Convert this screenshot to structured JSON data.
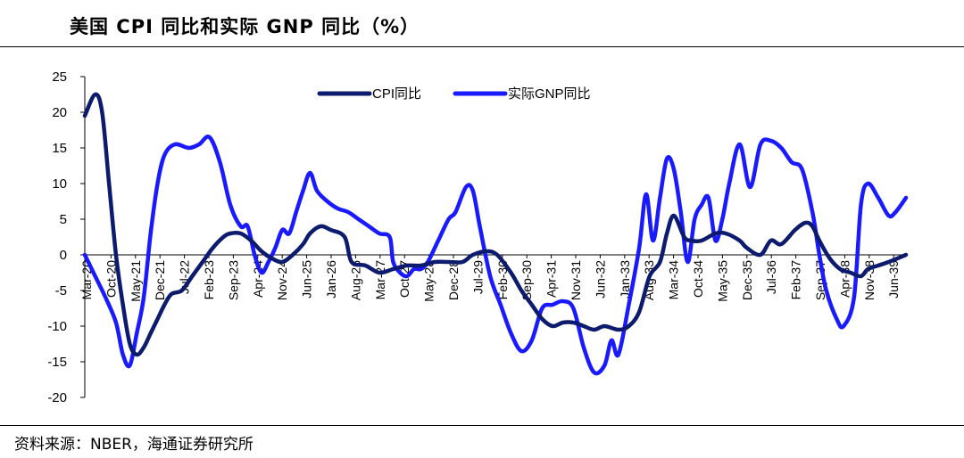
{
  "header": {
    "title": "美国 CPI 同比和实际 GNP 同比（%）"
  },
  "footer": {
    "source": "资料来源：NBER，海通证券研究所"
  },
  "chart_data": {
    "type": "line",
    "title": "美国 CPI 同比和实际 GNP 同比（%）",
    "xlabel": "",
    "ylabel": "",
    "ylim": [
      -20,
      25
    ],
    "yticks": [
      25,
      20,
      15,
      10,
      5,
      0,
      -5,
      -10,
      -15,
      -20
    ],
    "grid": false,
    "legend_position": "top-center",
    "x_tick_labels": [
      "Mar-20",
      "Oct-20",
      "May-21",
      "Dec-21",
      "Jul-22",
      "Feb-23",
      "Sep-23",
      "Apr-24",
      "Nov-24",
      "Jun-25",
      "Jan-26",
      "Aug-26",
      "Mar-27",
      "Oct-27",
      "May-28",
      "Dec-28",
      "Jul-29",
      "Feb-30",
      "Sep-30",
      "Apr-31",
      "Nov-31",
      "Jun-32",
      "Jan-33",
      "Aug-33",
      "Mar-34",
      "Oct-34",
      "May-35",
      "Dec-35",
      "Jul-36",
      "Feb-37",
      "Sep-37",
      "Apr-38",
      "Nov-38",
      "Jun-39"
    ],
    "series": [
      {
        "name": "CPI同比",
        "color": "#0d1b6e",
        "points": [
          [
            "Mar-20",
            19.5
          ],
          [
            "Jun-20",
            22.5
          ],
          [
            "Aug-20",
            20
          ],
          [
            "Oct-20",
            10
          ],
          [
            "Dec-20",
            0
          ],
          [
            "Feb-21",
            -7
          ],
          [
            "Apr-21",
            -12.5
          ],
          [
            "Jun-21",
            -14
          ],
          [
            "Aug-21",
            -13
          ],
          [
            "Oct-21",
            -11
          ],
          [
            "Dec-21",
            -9
          ],
          [
            "Feb-22",
            -7
          ],
          [
            "Apr-22",
            -5.5
          ],
          [
            "Jul-22",
            -5
          ],
          [
            "Oct-22",
            -3
          ],
          [
            "Jan-23",
            -1
          ],
          [
            "Apr-23",
            1
          ],
          [
            "Jul-23",
            2.5
          ],
          [
            "Sep-23",
            3
          ],
          [
            "Dec-23",
            3
          ],
          [
            "Mar-24",
            2
          ],
          [
            "Jun-24",
            0.5
          ],
          [
            "Sep-24",
            -0.5
          ],
          [
            "Dec-24",
            -1
          ],
          [
            "Mar-25",
            0
          ],
          [
            "Jun-25",
            1.5
          ],
          [
            "Aug-25",
            3
          ],
          [
            "Nov-25",
            4
          ],
          [
            "Feb-26",
            3.5
          ],
          [
            "Jun-26",
            2.5
          ],
          [
            "Aug-26",
            -1
          ],
          [
            "Dec-26",
            -1.5
          ],
          [
            "Apr-27",
            -2.5
          ],
          [
            "Aug-27",
            -2
          ],
          [
            "Dec-27",
            -1.5
          ],
          [
            "Apr-28",
            -1.5
          ],
          [
            "Aug-28",
            -1
          ],
          [
            "Dec-28",
            -1
          ],
          [
            "Apr-29",
            -1
          ],
          [
            "Jul-29",
            0
          ],
          [
            "Nov-29",
            0.5
          ],
          [
            "Feb-30",
            0
          ],
          [
            "Jun-30",
            -2.5
          ],
          [
            "Sep-30",
            -5
          ],
          [
            "Dec-30",
            -7
          ],
          [
            "Mar-31",
            -9
          ],
          [
            "Jun-31",
            -10
          ],
          [
            "Sep-31",
            -9.5
          ],
          [
            "Dec-31",
            -9.5
          ],
          [
            "Mar-32",
            -10
          ],
          [
            "Jun-32",
            -10.5
          ],
          [
            "Sep-32",
            -10
          ],
          [
            "Jan-33",
            -10.5
          ],
          [
            "Apr-33",
            -10
          ],
          [
            "Jul-33",
            -8
          ],
          [
            "Oct-33",
            -3
          ],
          [
            "Jan-34",
            -1
          ],
          [
            "Mar-34",
            3
          ],
          [
            "May-34",
            5.5
          ],
          [
            "Aug-34",
            2.5
          ],
          [
            "Oct-34",
            2
          ],
          [
            "Jan-35",
            2
          ],
          [
            "May-35",
            3
          ],
          [
            "Aug-35",
            3
          ],
          [
            "Dec-35",
            2
          ],
          [
            "Feb-36",
            1
          ],
          [
            "Jun-36",
            0
          ],
          [
            "Sep-36",
            2
          ],
          [
            "Dec-36",
            1.5
          ],
          [
            "Apr-37",
            3.5
          ],
          [
            "Jul-37",
            4.5
          ],
          [
            "Sep-37",
            4
          ],
          [
            "Nov-37",
            2
          ],
          [
            "Feb-38",
            -0.5
          ],
          [
            "May-38",
            -2
          ],
          [
            "Aug-38",
            -2.5
          ],
          [
            "Nov-38",
            -3
          ],
          [
            "Jan-39",
            -2
          ],
          [
            "Apr-39",
            -1.5
          ],
          [
            "Jul-39",
            -1
          ],
          [
            "Dec-39",
            0
          ]
        ]
      },
      {
        "name": "实际GNP同比",
        "color": "#1a1aff",
        "points": [
          [
            "Mar-20",
            0
          ],
          [
            "Jun-20",
            -3
          ],
          [
            "Sep-20",
            -6
          ],
          [
            "Dec-20",
            -9.5
          ],
          [
            "Feb-21",
            -14
          ],
          [
            "Apr-21",
            -15.5
          ],
          [
            "Jun-21",
            -11
          ],
          [
            "Aug-21",
            -6
          ],
          [
            "Oct-21",
            3
          ],
          [
            "Dec-21",
            10
          ],
          [
            "Feb-22",
            14
          ],
          [
            "May-22",
            15.5
          ],
          [
            "Sep-22",
            15
          ],
          [
            "Dec-22",
            15.5
          ],
          [
            "Mar-23",
            16.5
          ],
          [
            "Jun-23",
            13
          ],
          [
            "Sep-23",
            7
          ],
          [
            "Dec-23",
            4
          ],
          [
            "Feb-24",
            4
          ],
          [
            "Apr-24",
            0
          ],
          [
            "Jun-24",
            -2.5
          ],
          [
            "Aug-24",
            -1
          ],
          [
            "Oct-24",
            1
          ],
          [
            "Dec-24",
            3.5
          ],
          [
            "Feb-25",
            3
          ],
          [
            "Apr-25",
            6
          ],
          [
            "Jun-25",
            9
          ],
          [
            "Aug-25",
            11.5
          ],
          [
            "Oct-25",
            9
          ],
          [
            "Jan-26",
            7.5
          ],
          [
            "Apr-26",
            6.5
          ],
          [
            "Jul-26",
            6
          ],
          [
            "Oct-26",
            5
          ],
          [
            "Jan-27",
            4
          ],
          [
            "Apr-27",
            3
          ],
          [
            "Jul-27",
            2.5
          ],
          [
            "Aug-27",
            -1
          ],
          [
            "Oct-27",
            -2.5
          ],
          [
            "Dec-27",
            -3
          ],
          [
            "Feb-28",
            -2
          ],
          [
            "Apr-28",
            -2
          ],
          [
            "Jun-28",
            -1
          ],
          [
            "Sep-28",
            2
          ],
          [
            "Dec-28",
            5
          ],
          [
            "Feb-29",
            6
          ],
          [
            "May-29",
            9.5
          ],
          [
            "Jul-29",
            9
          ],
          [
            "Sep-29",
            4
          ],
          [
            "Dec-29",
            -3
          ],
          [
            "Mar-30",
            -7
          ],
          [
            "Jun-30",
            -11
          ],
          [
            "Sep-30",
            -13.5
          ],
          [
            "Dec-30",
            -12
          ],
          [
            "Mar-31",
            -7.5
          ],
          [
            "Jun-31",
            -7
          ],
          [
            "Sep-31",
            -6.5
          ],
          [
            "Dec-31",
            -7.5
          ],
          [
            "Mar-32",
            -13
          ],
          [
            "Jun-32",
            -16.5
          ],
          [
            "Sep-32",
            -15.5
          ],
          [
            "Nov-32",
            -12
          ],
          [
            "Jan-33",
            -14
          ],
          [
            "Apr-33",
            -7
          ],
          [
            "Jul-33",
            1
          ],
          [
            "Sep-33",
            8.5
          ],
          [
            "Nov-33",
            2
          ],
          [
            "Jan-34",
            8
          ],
          [
            "Mar-34",
            13.5
          ],
          [
            "May-34",
            12
          ],
          [
            "Jul-34",
            6
          ],
          [
            "Sep-34",
            -1
          ],
          [
            "Nov-34",
            5
          ],
          [
            "Jan-35",
            7
          ],
          [
            "Mar-35",
            8
          ],
          [
            "May-35",
            2
          ],
          [
            "Jul-35",
            5
          ],
          [
            "Sep-35",
            10
          ],
          [
            "Dec-35",
            15.5
          ],
          [
            "Mar-36",
            9.5
          ],
          [
            "Jun-36",
            15.5
          ],
          [
            "Sep-36",
            16
          ],
          [
            "Dec-36",
            15
          ],
          [
            "Mar-37",
            13
          ],
          [
            "Jun-37",
            12
          ],
          [
            "Sep-37",
            6
          ],
          [
            "Nov-37",
            0
          ],
          [
            "Jan-38",
            -5
          ],
          [
            "Apr-38",
            -9
          ],
          [
            "Jun-38",
            -10
          ],
          [
            "Sep-38",
            -6
          ],
          [
            "Nov-38",
            7
          ],
          [
            "Jan-39",
            10
          ],
          [
            "Apr-39",
            8
          ],
          [
            "Jul-39",
            5.5
          ],
          [
            "Sep-39",
            6
          ],
          [
            "Dec-39",
            8
          ]
        ]
      }
    ]
  }
}
